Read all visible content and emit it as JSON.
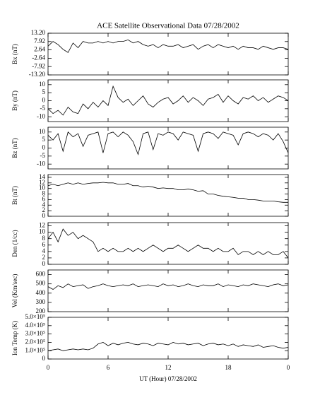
{
  "chart_data": [
    {
      "type": "line",
      "title": "ACE Satellite Observational Data   07/28/2002",
      "ylabel": "Bx (nT)",
      "color": "#000000",
      "x": [
        0,
        0.5,
        1,
        1.5,
        2,
        2.5,
        3,
        3.5,
        4,
        4.5,
        5,
        5.5,
        6,
        6.5,
        7,
        7.5,
        8,
        8.5,
        9,
        9.5,
        10,
        10.5,
        11,
        11.5,
        12,
        12.5,
        13,
        13.5,
        14,
        14.5,
        15,
        15.5,
        16,
        16.5,
        17,
        17.5,
        18,
        18.5,
        19,
        19.5,
        20,
        20.5,
        21,
        21.5,
        22,
        22.5,
        23,
        23.5,
        24
      ],
      "values": [
        5,
        8,
        6,
        3,
        1,
        7,
        4,
        8,
        7,
        7,
        8,
        7,
        8,
        7,
        8,
        8,
        9,
        7,
        8,
        6,
        5,
        6,
        4,
        6,
        5,
        5,
        6,
        4,
        5,
        6,
        3,
        5,
        6,
        4,
        6,
        5,
        4,
        5,
        3,
        5,
        4,
        4,
        3,
        5,
        4,
        3,
        4,
        4,
        3
      ],
      "xlim": [
        0,
        24
      ],
      "xticks": [
        0,
        6,
        12,
        18,
        24
      ],
      "ylim": [
        -13.2,
        13.2
      ],
      "yticks": [
        {
          "value": 13.2,
          "label": "13.20"
        },
        7.92,
        2.64,
        -2.64,
        -7.92,
        {
          "value": -13.2,
          "label": "-13.20"
        }
      ]
    },
    {
      "type": "line",
      "ylabel": "By (nT)",
      "color": "#000000",
      "x": [
        0,
        0.5,
        1,
        1.5,
        2,
        2.5,
        3,
        3.5,
        4,
        4.5,
        5,
        5.5,
        6,
        6.5,
        7,
        7.5,
        8,
        8.5,
        9,
        9.5,
        10,
        10.5,
        11,
        11.5,
        12,
        12.5,
        13,
        13.5,
        14,
        14.5,
        15,
        15.5,
        16,
        16.5,
        17,
        17.5,
        18,
        18.5,
        19,
        19.5,
        20,
        20.5,
        21,
        21.5,
        22,
        22.5,
        23,
        23.5,
        24
      ],
      "values": [
        -5,
        -8,
        -6,
        -9,
        -4,
        -7,
        -8,
        -2,
        -5,
        -1,
        -4,
        0,
        -3,
        9,
        2,
        -1,
        1,
        -3,
        0,
        3,
        -2,
        -4,
        -1,
        1,
        2,
        -2,
        0,
        3,
        -1,
        2,
        0,
        -3,
        1,
        2,
        4,
        -1,
        3,
        0,
        -2,
        2,
        1,
        3,
        0,
        2,
        -1,
        1,
        3,
        2,
        0
      ],
      "xlim": [
        0,
        24
      ],
      "xticks": [
        0,
        6,
        12,
        18,
        24
      ],
      "ylim": [
        -13,
        13
      ],
      "yticks": [
        10,
        5,
        0,
        -5,
        -10
      ]
    },
    {
      "type": "line",
      "ylabel": "Bz (nT)",
      "color": "#000000",
      "x": [
        0,
        0.5,
        1,
        1.5,
        2,
        2.5,
        3,
        3.5,
        4,
        4.5,
        5,
        5.5,
        6,
        6.5,
        7,
        7.5,
        8,
        8.5,
        9,
        9.5,
        10,
        10.5,
        11,
        11.5,
        12,
        12.5,
        13,
        13.5,
        14,
        14.5,
        15,
        15.5,
        16,
        16.5,
        17,
        17.5,
        18,
        18.5,
        19,
        19.5,
        20,
        20.5,
        21,
        21.5,
        22,
        22.5,
        23,
        23.5,
        24
      ],
      "values": [
        8,
        5,
        9,
        -2,
        10,
        7,
        9,
        1,
        8,
        9,
        10,
        -3,
        9,
        10,
        7,
        10,
        8,
        4,
        -4,
        9,
        10,
        -1,
        9,
        8,
        10,
        9,
        5,
        10,
        9,
        8,
        -2,
        9,
        10,
        9,
        6,
        10,
        9,
        8,
        2,
        9,
        10,
        9,
        7,
        9,
        8,
        5,
        9,
        4,
        -3
      ],
      "xlim": [
        0,
        24
      ],
      "xticks": [
        0,
        6,
        12,
        18,
        24
      ],
      "ylim": [
        -13,
        13
      ],
      "yticks": [
        10,
        5,
        0,
        -5,
        -10
      ]
    },
    {
      "type": "line",
      "ylabel": "Bt (nT)",
      "color": "#000000",
      "x": [
        0,
        0.5,
        1,
        1.5,
        2,
        2.5,
        3,
        3.5,
        4,
        4.5,
        5,
        5.5,
        6,
        6.5,
        7,
        7.5,
        8,
        8.5,
        9,
        9.5,
        10,
        10.5,
        11,
        11.5,
        12,
        12.5,
        13,
        13.5,
        14,
        14.5,
        15,
        15.5,
        16,
        16.5,
        17,
        17.5,
        18,
        18.5,
        19,
        19.5,
        20,
        20.5,
        21,
        21.5,
        22,
        22.5,
        23,
        23.5,
        24
      ],
      "values": [
        11,
        11.5,
        11,
        11.5,
        12,
        11.5,
        12,
        11.5,
        11.8,
        12,
        12,
        12.2,
        12,
        12,
        11.5,
        11.5,
        11.8,
        11,
        11,
        10.5,
        10.8,
        10.5,
        10,
        10.2,
        10,
        10,
        9.5,
        9.5,
        9.8,
        9.5,
        9,
        9.2,
        8,
        8,
        7.5,
        7.2,
        7,
        6.8,
        6.5,
        6.5,
        6,
        6,
        5.8,
        5.5,
        5.5,
        5.5,
        5.2,
        5,
        5
      ],
      "xlim": [
        0,
        24
      ],
      "xticks": [
        0,
        6,
        12,
        18,
        24
      ],
      "ylim": [
        0,
        15
      ],
      "yticks": [
        14,
        12,
        10,
        8,
        6,
        4,
        2,
        0
      ]
    },
    {
      "type": "line",
      "ylabel": "Den (1/cc)",
      "color": "#000000",
      "x": [
        0,
        0.5,
        1,
        1.5,
        2,
        2.5,
        3,
        3.5,
        4,
        4.5,
        5,
        5.5,
        6,
        6.5,
        7,
        7.5,
        8,
        8.5,
        9,
        9.5,
        10,
        10.5,
        11,
        11.5,
        12,
        12.5,
        13,
        13.5,
        14,
        14.5,
        15,
        15.5,
        16,
        16.5,
        17,
        17.5,
        18,
        18.5,
        19,
        19.5,
        20,
        20.5,
        21,
        21.5,
        22,
        22.5,
        23,
        23.5,
        24
      ],
      "values": [
        8,
        10,
        7,
        11,
        9,
        10,
        8,
        9,
        8,
        7,
        4,
        5,
        4,
        5,
        4,
        4,
        5,
        4,
        5,
        4,
        5,
        6,
        5,
        4,
        5,
        5,
        6,
        5,
        4,
        5,
        6,
        5,
        5,
        4,
        5,
        4,
        4,
        5,
        3,
        4,
        4,
        3,
        4,
        3,
        4,
        3,
        3,
        4,
        2
      ],
      "xlim": [
        0,
        24
      ],
      "xticks": [
        0,
        6,
        12,
        18,
        24
      ],
      "ylim": [
        0,
        13
      ],
      "yticks": [
        12,
        10,
        8,
        6,
        4,
        2,
        0
      ]
    },
    {
      "type": "line",
      "ylabel": "Vel (Km/sec)",
      "color": "#000000",
      "x": [
        0,
        0.5,
        1,
        1.5,
        2,
        2.5,
        3,
        3.5,
        4,
        4.5,
        5,
        5.5,
        6,
        6.5,
        7,
        7.5,
        8,
        8.5,
        9,
        9.5,
        10,
        10.5,
        11,
        11.5,
        12,
        12.5,
        13,
        13.5,
        14,
        14.5,
        15,
        15.5,
        16,
        16.5,
        17,
        17.5,
        18,
        18.5,
        19,
        19.5,
        20,
        20.5,
        21,
        21.5,
        22,
        22.5,
        23,
        23.5,
        24
      ],
      "values": [
        470,
        440,
        480,
        460,
        500,
        470,
        480,
        490,
        450,
        470,
        480,
        500,
        480,
        470,
        480,
        490,
        480,
        500,
        470,
        480,
        490,
        480,
        470,
        500,
        480,
        490,
        470,
        480,
        500,
        480,
        470,
        490,
        480,
        480,
        500,
        470,
        490,
        480,
        470,
        490,
        480,
        500,
        490,
        480,
        470,
        490,
        500,
        480,
        490
      ],
      "xlim": [
        0,
        24
      ],
      "xticks": [
        0,
        6,
        12,
        18,
        24
      ],
      "ylim": [
        200,
        650
      ],
      "yticks": [
        600,
        500,
        400,
        300,
        200
      ]
    },
    {
      "type": "line",
      "ylabel": "Ion Temp (K)",
      "xlabel": "UT (Hour)   07/28/2002",
      "color": "#000000",
      "x": [
        0,
        0.5,
        1,
        1.5,
        2,
        2.5,
        3,
        3.5,
        4,
        4.5,
        5,
        5.5,
        6,
        6.5,
        7,
        7.5,
        8,
        8.5,
        9,
        9.5,
        10,
        10.5,
        11,
        11.5,
        12,
        12.5,
        13,
        13.5,
        14,
        14.5,
        15,
        15.5,
        16,
        16.5,
        17,
        17.5,
        18,
        18.5,
        19,
        19.5,
        20,
        20.5,
        21,
        21.5,
        22,
        22.5,
        23,
        23.5,
        24
      ],
      "values": [
        100000,
        110000,
        120000,
        100000,
        110000,
        120000,
        110000,
        120000,
        110000,
        130000,
        180000,
        200000,
        160000,
        190000,
        170000,
        190000,
        200000,
        180000,
        170000,
        190000,
        180000,
        160000,
        190000,
        180000,
        170000,
        200000,
        180000,
        190000,
        170000,
        180000,
        190000,
        160000,
        180000,
        190000,
        170000,
        180000,
        160000,
        180000,
        150000,
        170000,
        160000,
        150000,
        170000,
        140000,
        150000,
        160000,
        140000,
        130000,
        140000
      ],
      "xlim": [
        0,
        24
      ],
      "xticks": [
        0,
        6,
        12,
        18,
        {
          "value": 24,
          "label": "0"
        }
      ],
      "ylim": [
        0,
        500000
      ],
      "yticks": [
        {
          "value": 500000,
          "label": "5.0×10⁵"
        },
        {
          "value": 400000,
          "label": "4.0×10⁵"
        },
        {
          "value": 300000,
          "label": "3.0×10⁵"
        },
        {
          "value": 200000,
          "label": "2.0×10⁵"
        },
        {
          "value": 100000,
          "label": "1.0×10⁵"
        },
        0
      ]
    }
  ]
}
